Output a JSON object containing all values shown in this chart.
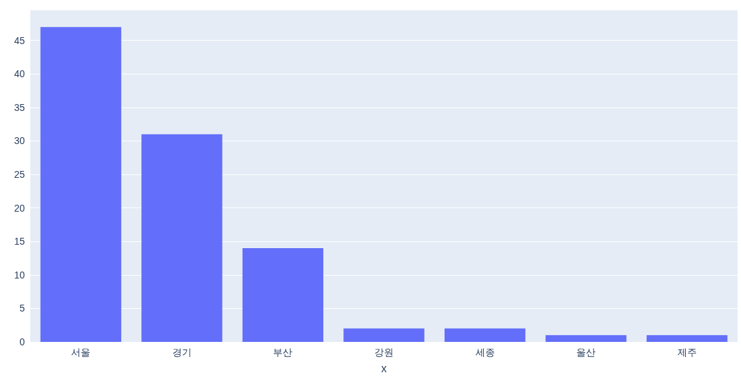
{
  "chart_data": {
    "type": "bar",
    "xlabel": "x",
    "categories": [
      "서울",
      "경기",
      "부산",
      "강원",
      "세종",
      "울산",
      "제주"
    ],
    "values": [
      47,
      31,
      14,
      2,
      2,
      1,
      1
    ],
    "color": "#636efa",
    "ylim": [
      0,
      49.5
    ],
    "yticks": [
      0,
      5,
      10,
      15,
      20,
      25,
      30,
      35,
      40,
      45
    ],
    "grid": "y"
  }
}
